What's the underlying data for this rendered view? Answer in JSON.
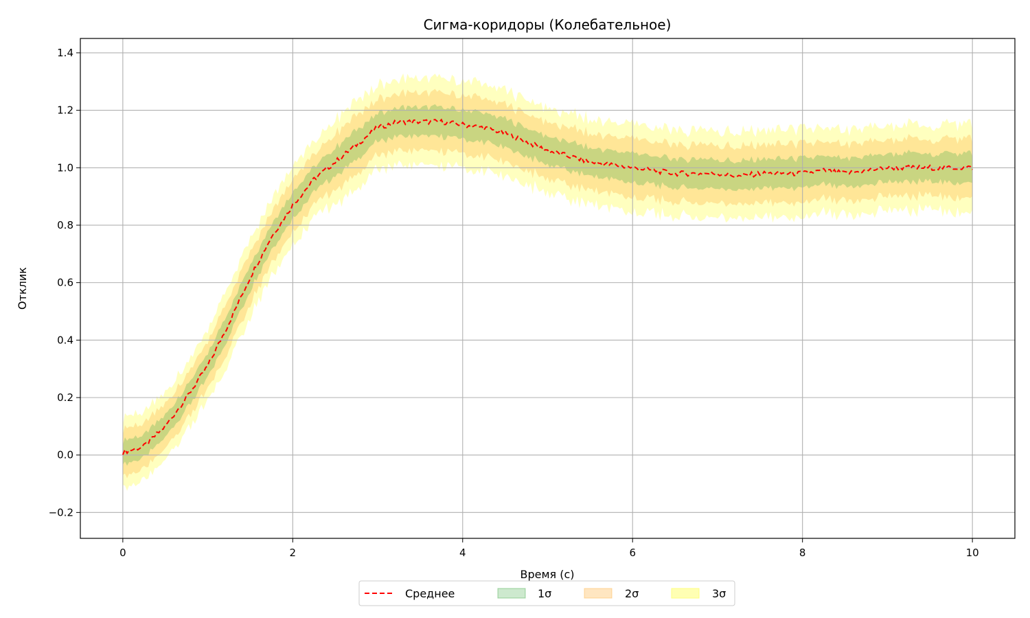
{
  "chart_data": {
    "type": "area",
    "title": "Сигма-коридоры (Колебательное)",
    "xlabel": "Время (с)",
    "ylabel": "Отклик",
    "xlim": [
      -0.5,
      10.5
    ],
    "ylim": [
      -0.29,
      1.45
    ],
    "x_ticks": [
      0,
      2,
      4,
      6,
      8,
      10
    ],
    "x_tick_labels": [
      "0",
      "2",
      "4",
      "6",
      "8",
      "10"
    ],
    "y_ticks": [
      -0.2,
      0.0,
      0.2,
      0.4,
      0.6,
      0.8,
      1.0,
      1.2,
      1.4
    ],
    "y_tick_labels": [
      "−0.2",
      "0.0",
      "0.2",
      "0.4",
      "0.6",
      "0.8",
      "1.0",
      "1.2",
      "1.4"
    ],
    "grid": true,
    "legend_position": "bottom-center",
    "x": [
      0,
      0.25,
      0.5,
      0.75,
      1.0,
      1.25,
      1.5,
      1.75,
      2.0,
      2.25,
      2.5,
      2.75,
      3.0,
      3.25,
      3.5,
      3.75,
      4.0,
      4.25,
      4.5,
      4.75,
      5.0,
      5.25,
      5.5,
      5.75,
      6.0,
      6.25,
      6.5,
      6.75,
      7.0,
      7.25,
      7.5,
      7.75,
      8.0,
      8.25,
      8.5,
      8.75,
      9.0,
      9.25,
      9.5,
      9.75,
      10.0
    ],
    "series": [
      {
        "name": "Среднее",
        "kind": "line",
        "color": "#ff0000",
        "style": "dashed",
        "values": [
          0.01,
          0.03,
          0.1,
          0.2,
          0.31,
          0.46,
          0.62,
          0.76,
          0.87,
          0.96,
          1.02,
          1.08,
          1.14,
          1.16,
          1.16,
          1.16,
          1.15,
          1.14,
          1.12,
          1.09,
          1.06,
          1.04,
          1.02,
          1.01,
          1.0,
          0.99,
          0.98,
          0.98,
          0.98,
          0.97,
          0.98,
          0.98,
          0.98,
          0.99,
          0.98,
          0.99,
          1.0,
          1.0,
          1.0,
          1.0,
          1.0
        ]
      },
      {
        "name": "1σ",
        "kind": "band",
        "color": "#4caf50",
        "sigma": [
          0.04,
          0.04,
          0.04,
          0.04,
          0.04,
          0.045,
          0.045,
          0.045,
          0.045,
          0.045,
          0.05,
          0.05,
          0.05,
          0.05,
          0.05,
          0.05,
          0.05,
          0.05,
          0.05,
          0.05,
          0.05,
          0.05,
          0.05,
          0.05,
          0.05,
          0.05,
          0.05,
          0.05,
          0.05,
          0.05,
          0.05,
          0.05,
          0.05,
          0.05,
          0.05,
          0.05,
          0.05,
          0.05,
          0.05,
          0.05,
          0.05
        ]
      },
      {
        "name": "2σ",
        "kind": "band",
        "color": "#ffb74d"
      },
      {
        "name": "3σ",
        "kind": "band",
        "color": "#ffff80"
      }
    ]
  }
}
